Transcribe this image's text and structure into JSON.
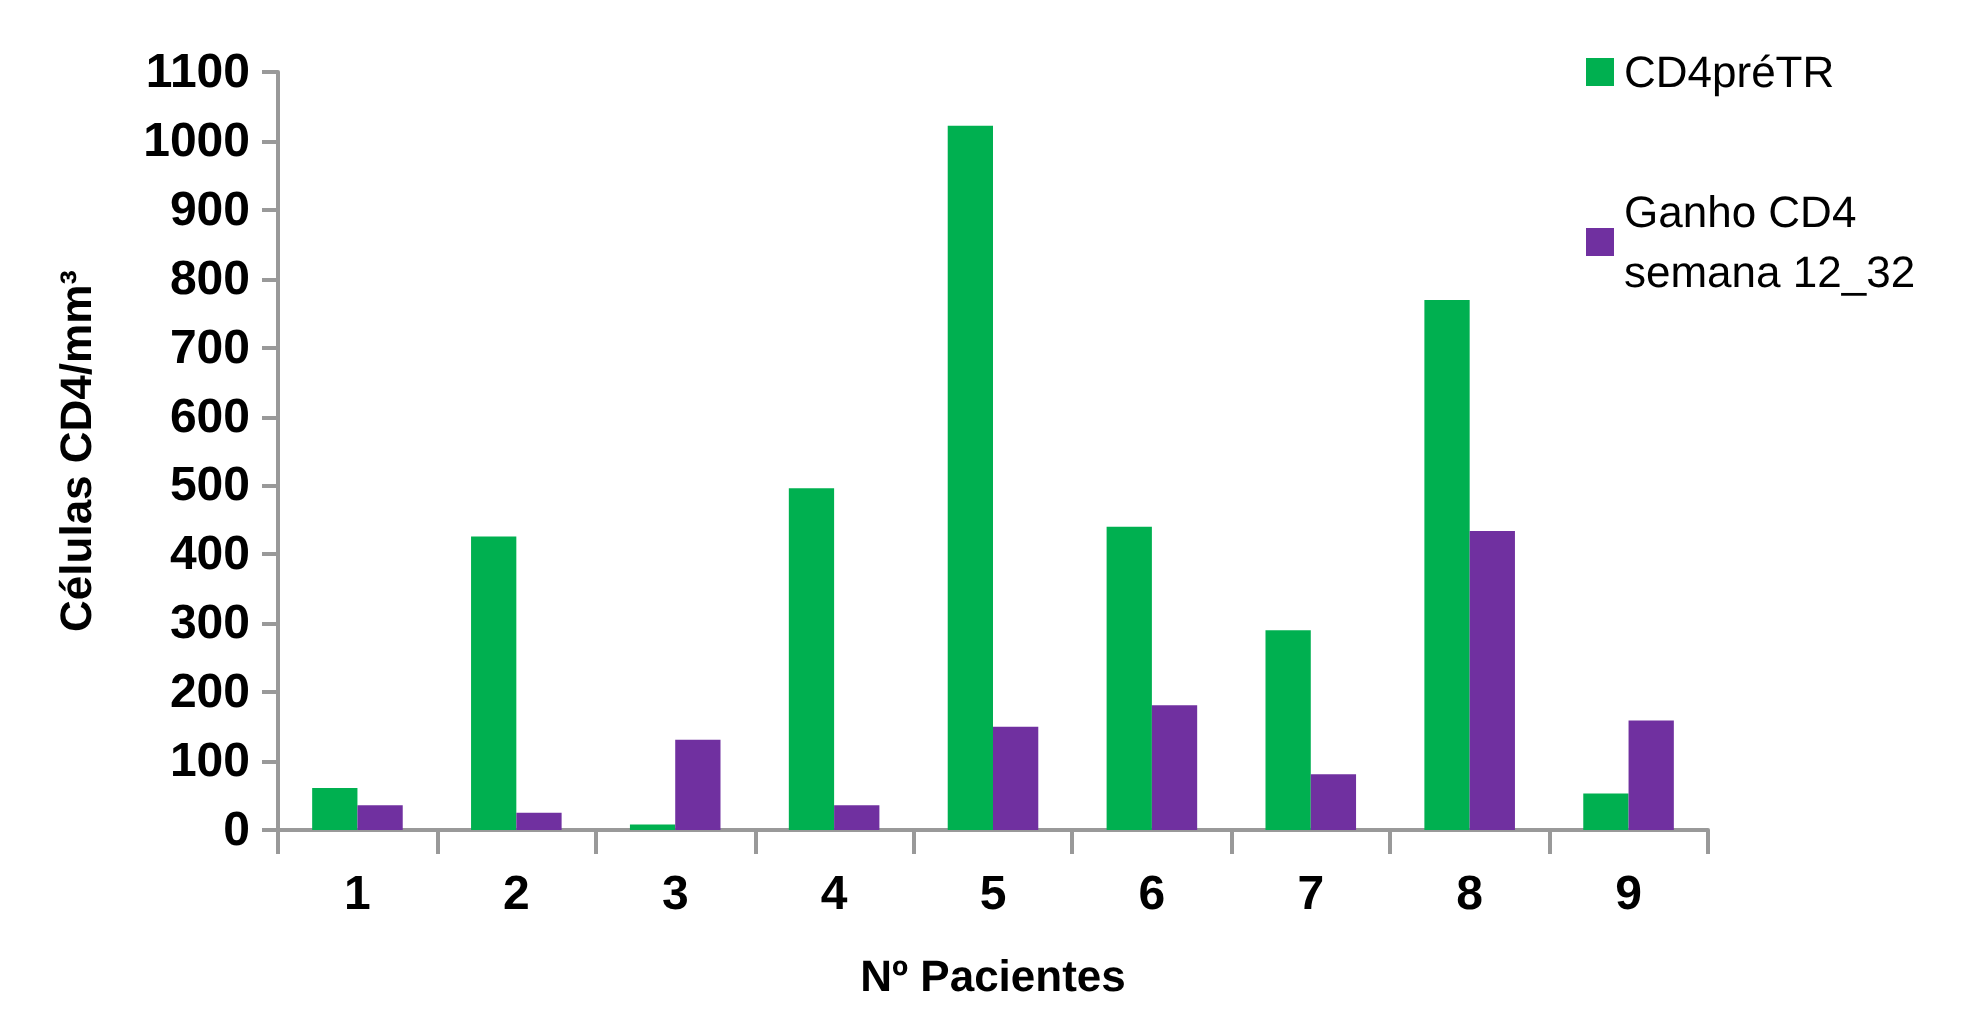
{
  "chart_data": {
    "type": "bar",
    "xlabel": "Nº Pacientes",
    "ylabel": "Células CD4/mm³",
    "categories": [
      "1",
      "2",
      "3",
      "4",
      "5",
      "6",
      "7",
      "8",
      "9"
    ],
    "series": [
      {
        "name": "CD4préTR",
        "color": "#00b050",
        "values": [
          61,
          426,
          8,
          496,
          1022,
          440,
          290,
          769,
          53
        ]
      },
      {
        "name": "Ganho CD4 semana 12_32",
        "color": "#7030a0",
        "values": [
          36,
          25,
          131,
          36,
          150,
          181,
          81,
          434,
          159
        ]
      }
    ],
    "ylim": [
      0,
      1100
    ],
    "yticks": [
      0,
      100,
      200,
      300,
      400,
      500,
      600,
      700,
      800,
      900,
      1000,
      1100
    ],
    "grid": false,
    "legend": "top right"
  }
}
